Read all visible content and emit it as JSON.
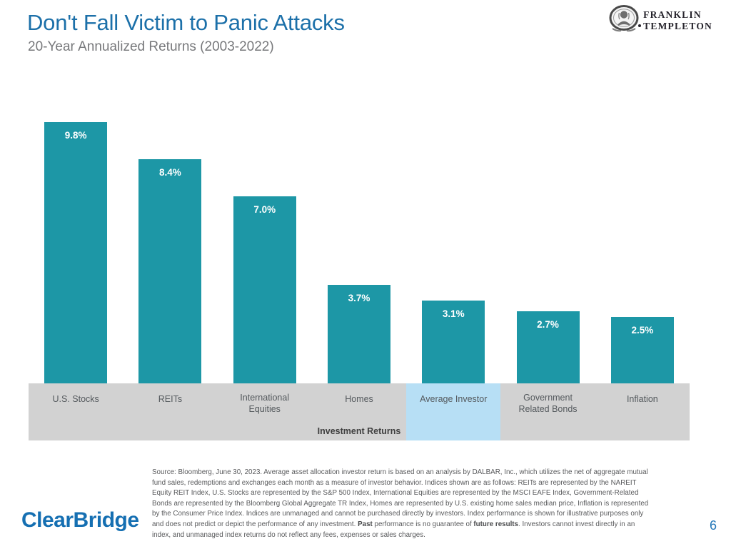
{
  "header": {
    "title": "Don't Fall Victim to Panic Attacks",
    "subtitle": "20-Year Annualized Returns (2003-2022)",
    "brand": {
      "line1": "FRANKLIN",
      "line2": "TEMPLETON"
    }
  },
  "chart_data": {
    "type": "bar",
    "title": "Don't Fall Victim to Panic Attacks",
    "subtitle": "20-Year Annualized Returns (2003-2022)",
    "categories": [
      "U.S. Stocks",
      "REITs",
      "International Equities",
      "Homes",
      "Average Investor",
      "Government Related Bonds",
      "Inflation"
    ],
    "values": [
      9.8,
      8.4,
      7.0,
      3.7,
      3.1,
      2.7,
      2.5
    ],
    "value_labels": [
      "9.8%",
      "8.4%",
      "7.0%",
      "3.7%",
      "3.1%",
      "2.7%",
      "2.5%"
    ],
    "xlabel": "Investment Returns",
    "ylabel": "",
    "ylim": [
      0,
      10.35
    ],
    "grid": false,
    "legend": "none",
    "highlight_category": "Average Investor",
    "highlight_index": 4,
    "bar_color": "#1D97A6",
    "band_color": "#D2D2D2",
    "highlight_color": "#B7DFF5"
  },
  "footnote": {
    "part1": "Source: Bloomberg, June 30, 2023. Average asset allocation investor return is based on an analysis by DALBAR, Inc., which utilizes the net of aggregate mutual fund sales, redemptions and exchanges each month as a measure of investor behavior. Indices shown are as follows: REITs are represented by the NAREIT Equity REIT Index, U.S. Stocks are represented by the S&P 500 Index, International Equities are represented by the MSCI EAFE Index, Government-Related Bonds are represented by the Bloomberg Global Aggregate TR Index, Homes are represented by U.S. existing home sales median price, Inflation is represented by the Consumer Price Index. Indices are unmanaged and cannot be purchased directly by investors. Index performance is shown for illustrative purposes only and does not predict or depict the performance of any investment. ",
    "bold1": "Past",
    "part2": " performance is no guarantee of ",
    "bold2": "future results",
    "part3": ". Investors cannot invest directly in an index, and unmanaged index returns do not reflect any fees, expenses or sales charges."
  },
  "footer": {
    "logo_text": "ClearBridge",
    "page_number": "6"
  },
  "colors": {
    "title_blue": "#1C70A9",
    "subtitle_gray": "#77787B",
    "bar_teal": "#1D97A6",
    "band_gray": "#D2D2D2",
    "highlight_blue": "#B7DFF5",
    "clearbridge_blue": "#156FB2",
    "franklin_templeton_dark": "#26242C"
  }
}
